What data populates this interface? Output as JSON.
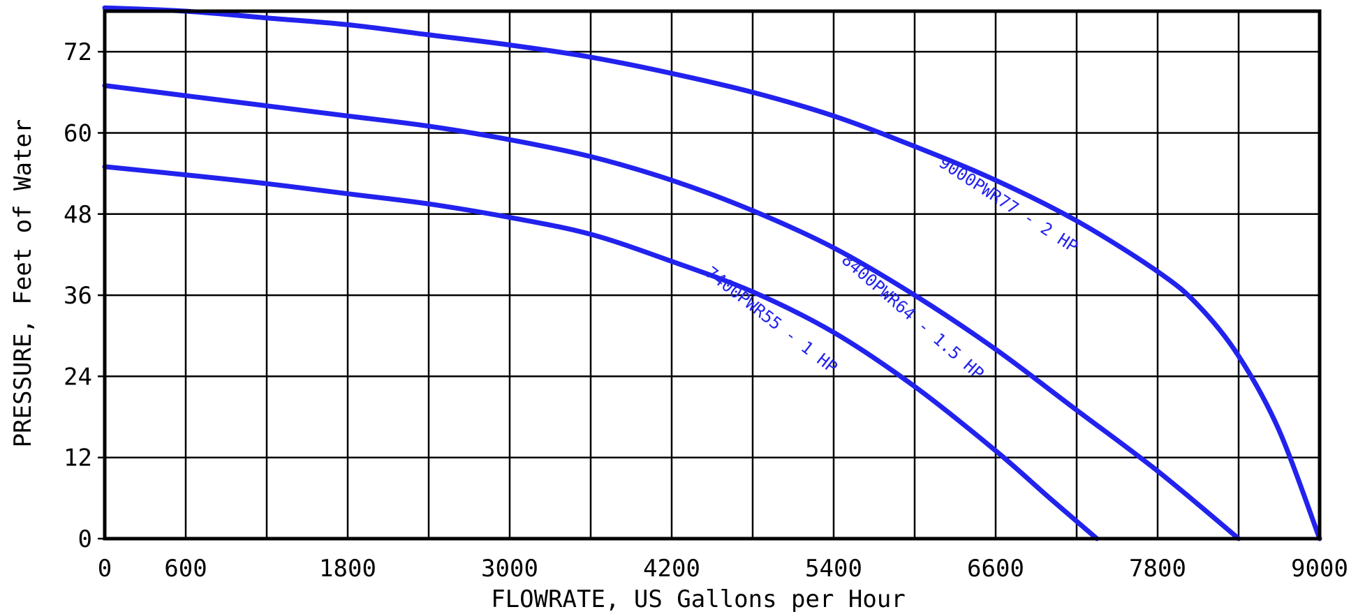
{
  "chart_data": {
    "type": "line",
    "title": "",
    "xlabel": "FLOWRATE, US Gallons per Hour",
    "ylabel": "PRESSURE, Feet of Water",
    "xlim": [
      0,
      9000
    ],
    "ylim": [
      0,
      78
    ],
    "x_ticks": [
      0,
      600,
      1800,
      3000,
      4200,
      5400,
      6600,
      7800,
      9000
    ],
    "y_ticks": [
      0,
      12,
      24,
      36,
      48,
      60,
      72
    ],
    "x_gridlines": [
      0,
      600,
      1200,
      1800,
      2400,
      3000,
      3600,
      4200,
      4800,
      5400,
      6000,
      6600,
      7200,
      7800,
      8400,
      9000
    ],
    "y_gridlines": [
      0,
      12,
      24,
      36,
      48,
      60,
      72
    ],
    "grid": true,
    "series_color": "#2222ee",
    "grid_color": "#000000",
    "series": [
      {
        "name": "7400PWR55 - 1 HP",
        "x": [
          0,
          600,
          1200,
          1800,
          2400,
          3000,
          3600,
          4200,
          4800,
          5400,
          6000,
          6600,
          7000,
          7350
        ],
        "y": [
          55,
          53.8,
          52.5,
          51,
          49.5,
          47.5,
          45,
          41,
          36.5,
          30.5,
          22.5,
          13,
          6,
          0
        ]
      },
      {
        "name": "8400PWR64 - 1.5 HP",
        "x": [
          0,
          600,
          1200,
          1800,
          2400,
          3000,
          3600,
          4200,
          4800,
          5400,
          6000,
          6600,
          7200,
          7800,
          8400
        ],
        "y": [
          67,
          65.5,
          64,
          62.5,
          61,
          59,
          56.5,
          53,
          48.5,
          43,
          36,
          28,
          19,
          10,
          0
        ]
      },
      {
        "name": "9000PWR77 - 2 HP",
        "x": [
          0,
          600,
          1200,
          1800,
          2400,
          3000,
          3600,
          4200,
          4800,
          5400,
          6000,
          6600,
          7200,
          7800,
          8100,
          8400,
          8700,
          9000
        ],
        "y": [
          78.5,
          78,
          77,
          76,
          74.5,
          73,
          71.2,
          68.8,
          66,
          62.5,
          58,
          53,
          47,
          39.5,
          34.5,
          27,
          16,
          0
        ]
      }
    ]
  }
}
